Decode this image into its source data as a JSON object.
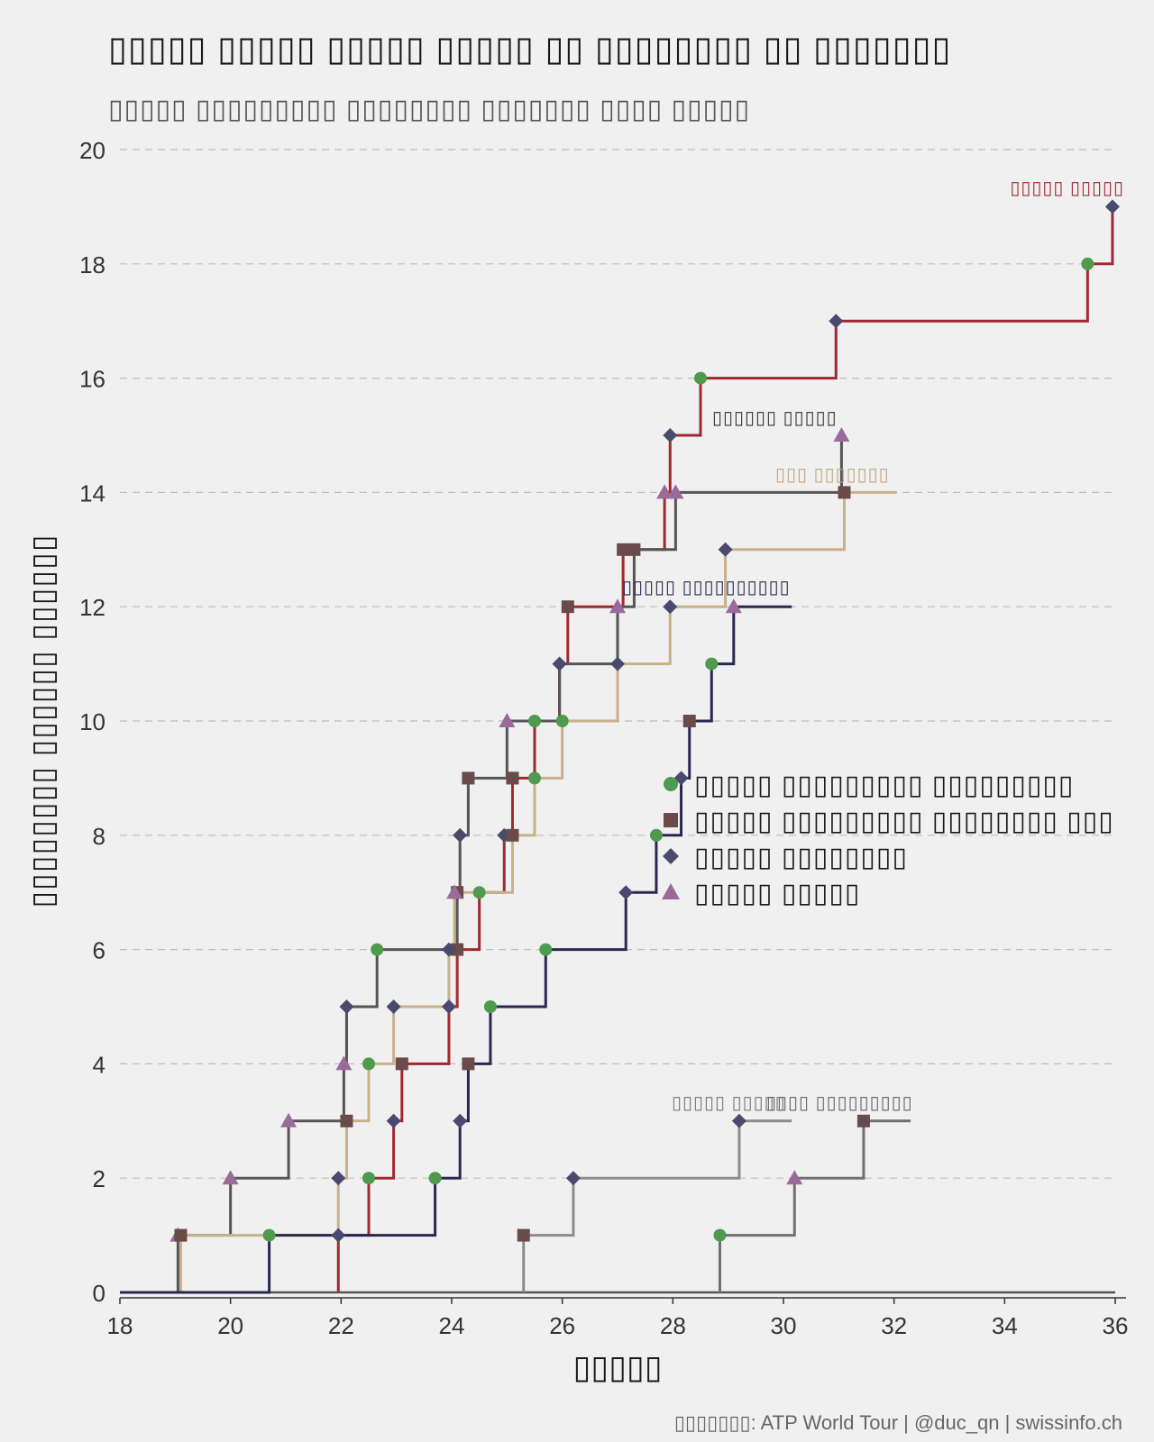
{
  "title": "▯▯▯▯▯ ▯▯▯▯▯ ▯▯▯▯▯ ▯▯▯▯▯ ▯▯ ▯▯▯▯▯▯▯▯ ▯▯ ▯▯▯▯▯▯▯",
  "subtitle": "▯▯▯▯▯ ▯▯▯▯▯▯▯▯▯ ▯▯▯▯▯▯▯▯ ▯▯▯▯▯▯▯ ▯▯▯▯ ▯▯▯▯▯",
  "source": "▯▯▯▯▯▯▯: ATP World Tour | @duc_qn | swissinfo.ch",
  "chart_data": {
    "type": "line",
    "step": true,
    "xlabel": "▯▯▯▯▯",
    "ylabel": "▯▯▯▯▯▯▯▯ ▯▯▯▯▯▯ ▯▯▯▯▯▯",
    "xlim": [
      18,
      36
    ],
    "ylim": [
      0,
      20
    ],
    "xticks": [
      18,
      20,
      22,
      24,
      26,
      28,
      30,
      32,
      34,
      36
    ],
    "yticks": [
      0,
      2,
      4,
      6,
      8,
      10,
      12,
      14,
      16,
      18,
      20
    ],
    "grid": "horizontal dashed",
    "marker_legend": {
      "placement": "center-right",
      "entries": [
        {
          "label": "▯▯▯▯▯ ▯▯▯▯▯▯▯▯▯ ▯▯▯▯▯▯▯▯▯",
          "marker": "circle",
          "color": "#4e9a4e"
        },
        {
          "label": "▯▯▯▯▯ ▯▯▯▯▯▯▯▯▯ ▯▯▯▯▯▯▯▯ ▯▯▯",
          "marker": "square",
          "color": "#6b4a4a"
        },
        {
          "label": "▯▯▯▯▯ ▯▯▯▯▯▯▯▯",
          "marker": "diamond",
          "color": "#4a4a6e"
        },
        {
          "label": "▯▯▯▯▯ ▯▯▯▯▯",
          "marker": "triangle",
          "color": "#9a6a9a"
        }
      ]
    },
    "series": [
      {
        "name": "▯▯▯▯▯ ▯▯▯▯▯",
        "color": "#a02830",
        "label_color": "#a02830",
        "start": [
          21.95,
          0
        ],
        "points": [
          [
            21.95,
            1,
            "diamond"
          ],
          [
            22.5,
            2,
            "circle"
          ],
          [
            22.95,
            3,
            "diamond"
          ],
          [
            23.1,
            4,
            "square"
          ],
          [
            23.95,
            5,
            "diamond"
          ],
          [
            24.1,
            6,
            "square"
          ],
          [
            24.5,
            7,
            "circle"
          ],
          [
            24.95,
            8,
            "diamond"
          ],
          [
            25.1,
            9,
            "square"
          ],
          [
            25.5,
            10,
            "circle"
          ],
          [
            25.95,
            11,
            "diamond"
          ],
          [
            26.1,
            12,
            "square"
          ],
          [
            27.1,
            13,
            "square"
          ],
          [
            27.85,
            14,
            "triangle"
          ],
          [
            27.95,
            15,
            "diamond"
          ],
          [
            28.5,
            16,
            "circle"
          ],
          [
            30.95,
            17,
            "diamond"
          ],
          [
            35.5,
            18,
            "circle"
          ],
          [
            35.95,
            19,
            "diamond"
          ]
        ],
        "end_x": 35.95
      },
      {
        "name": "▯▯▯▯▯▯ ▯▯▯▯▯",
        "color": "#555555",
        "label_color": "#333333",
        "start": [
          18,
          0
        ],
        "points": [
          [
            19.05,
            1,
            "triangle"
          ],
          [
            20,
            2,
            "triangle"
          ],
          [
            21.05,
            3,
            "triangle"
          ],
          [
            22.05,
            4,
            "triangle"
          ],
          [
            22.1,
            5,
            "diamond"
          ],
          [
            22.65,
            6,
            "circle"
          ],
          [
            24.1,
            7,
            "square"
          ],
          [
            24.15,
            8,
            "diamond"
          ],
          [
            24.3,
            9,
            "square"
          ],
          [
            25.0,
            10,
            "triangle"
          ],
          [
            25.95,
            11,
            "diamond"
          ],
          [
            27.0,
            12,
            "triangle"
          ],
          [
            27.3,
            13,
            "square"
          ],
          [
            28.05,
            14,
            "triangle"
          ],
          [
            31.05,
            15,
            "triangle"
          ]
        ],
        "end_x": 31.05
      },
      {
        "name": "▯▯▯ ▯▯▯▯▯▯▯",
        "color": "#c8b08c",
        "label_color": "#c0a480",
        "start": [
          19.1,
          0
        ],
        "points": [
          [
            19.1,
            1,
            "square"
          ],
          [
            21.95,
            2,
            "diamond"
          ],
          [
            22.1,
            3,
            "square"
          ],
          [
            22.5,
            4,
            "circle"
          ],
          [
            22.95,
            5,
            "diamond"
          ],
          [
            23.95,
            6,
            "diamond"
          ],
          [
            24.05,
            7,
            "triangle"
          ],
          [
            25.1,
            8,
            "square"
          ],
          [
            25.5,
            9,
            "circle"
          ],
          [
            26.0,
            10,
            "circle"
          ],
          [
            27.0,
            11,
            "diamond"
          ],
          [
            27.95,
            12,
            "diamond"
          ],
          [
            28.95,
            13,
            "diamond"
          ],
          [
            31.1,
            14,
            "square"
          ]
        ],
        "end_x": 32.05
      },
      {
        "name": "▯▯▯▯▯ ▯▯▯▯▯▯▯▯▯▯",
        "color": "#2a2850",
        "label_color": "#2a2850",
        "start": [
          18,
          0
        ],
        "points": [
          [
            20.7,
            1,
            "circle"
          ],
          [
            23.7,
            2,
            "circle"
          ],
          [
            24.15,
            3,
            "diamond"
          ],
          [
            24.3,
            4,
            "square"
          ],
          [
            24.7,
            5,
            "circle"
          ],
          [
            25.7,
            6,
            "circle"
          ],
          [
            27.15,
            7,
            "diamond"
          ],
          [
            27.7,
            8,
            "circle"
          ],
          [
            28.15,
            9,
            "diamond"
          ],
          [
            28.3,
            10,
            "square"
          ],
          [
            28.7,
            11,
            "circle"
          ],
          [
            29.1,
            12,
            "triangle"
          ]
        ],
        "end_x": 30.15
      },
      {
        "name": "▯▯▯▯▯ ▯▯▯▯▯",
        "color": "#8c8c8c",
        "label_color": "#777777",
        "start": [
          25.3,
          0
        ],
        "points": [
          [
            25.3,
            1,
            "square"
          ],
          [
            26.2,
            2,
            "diamond"
          ],
          [
            29.2,
            3,
            "diamond"
          ]
        ],
        "end_x": 30.15
      },
      {
        "name": "▯▯▯▯ ▯▯▯▯▯▯▯▯▯",
        "color": "#707070",
        "label_color": "#666666",
        "start": [
          28.85,
          0
        ],
        "points": [
          [
            28.85,
            1,
            "circle"
          ],
          [
            30.2,
            2,
            "triangle"
          ],
          [
            31.45,
            3,
            "square"
          ]
        ],
        "end_x": 32.3
      }
    ],
    "baseline": {
      "color": "#555555",
      "from": 18,
      "to": 36
    }
  }
}
